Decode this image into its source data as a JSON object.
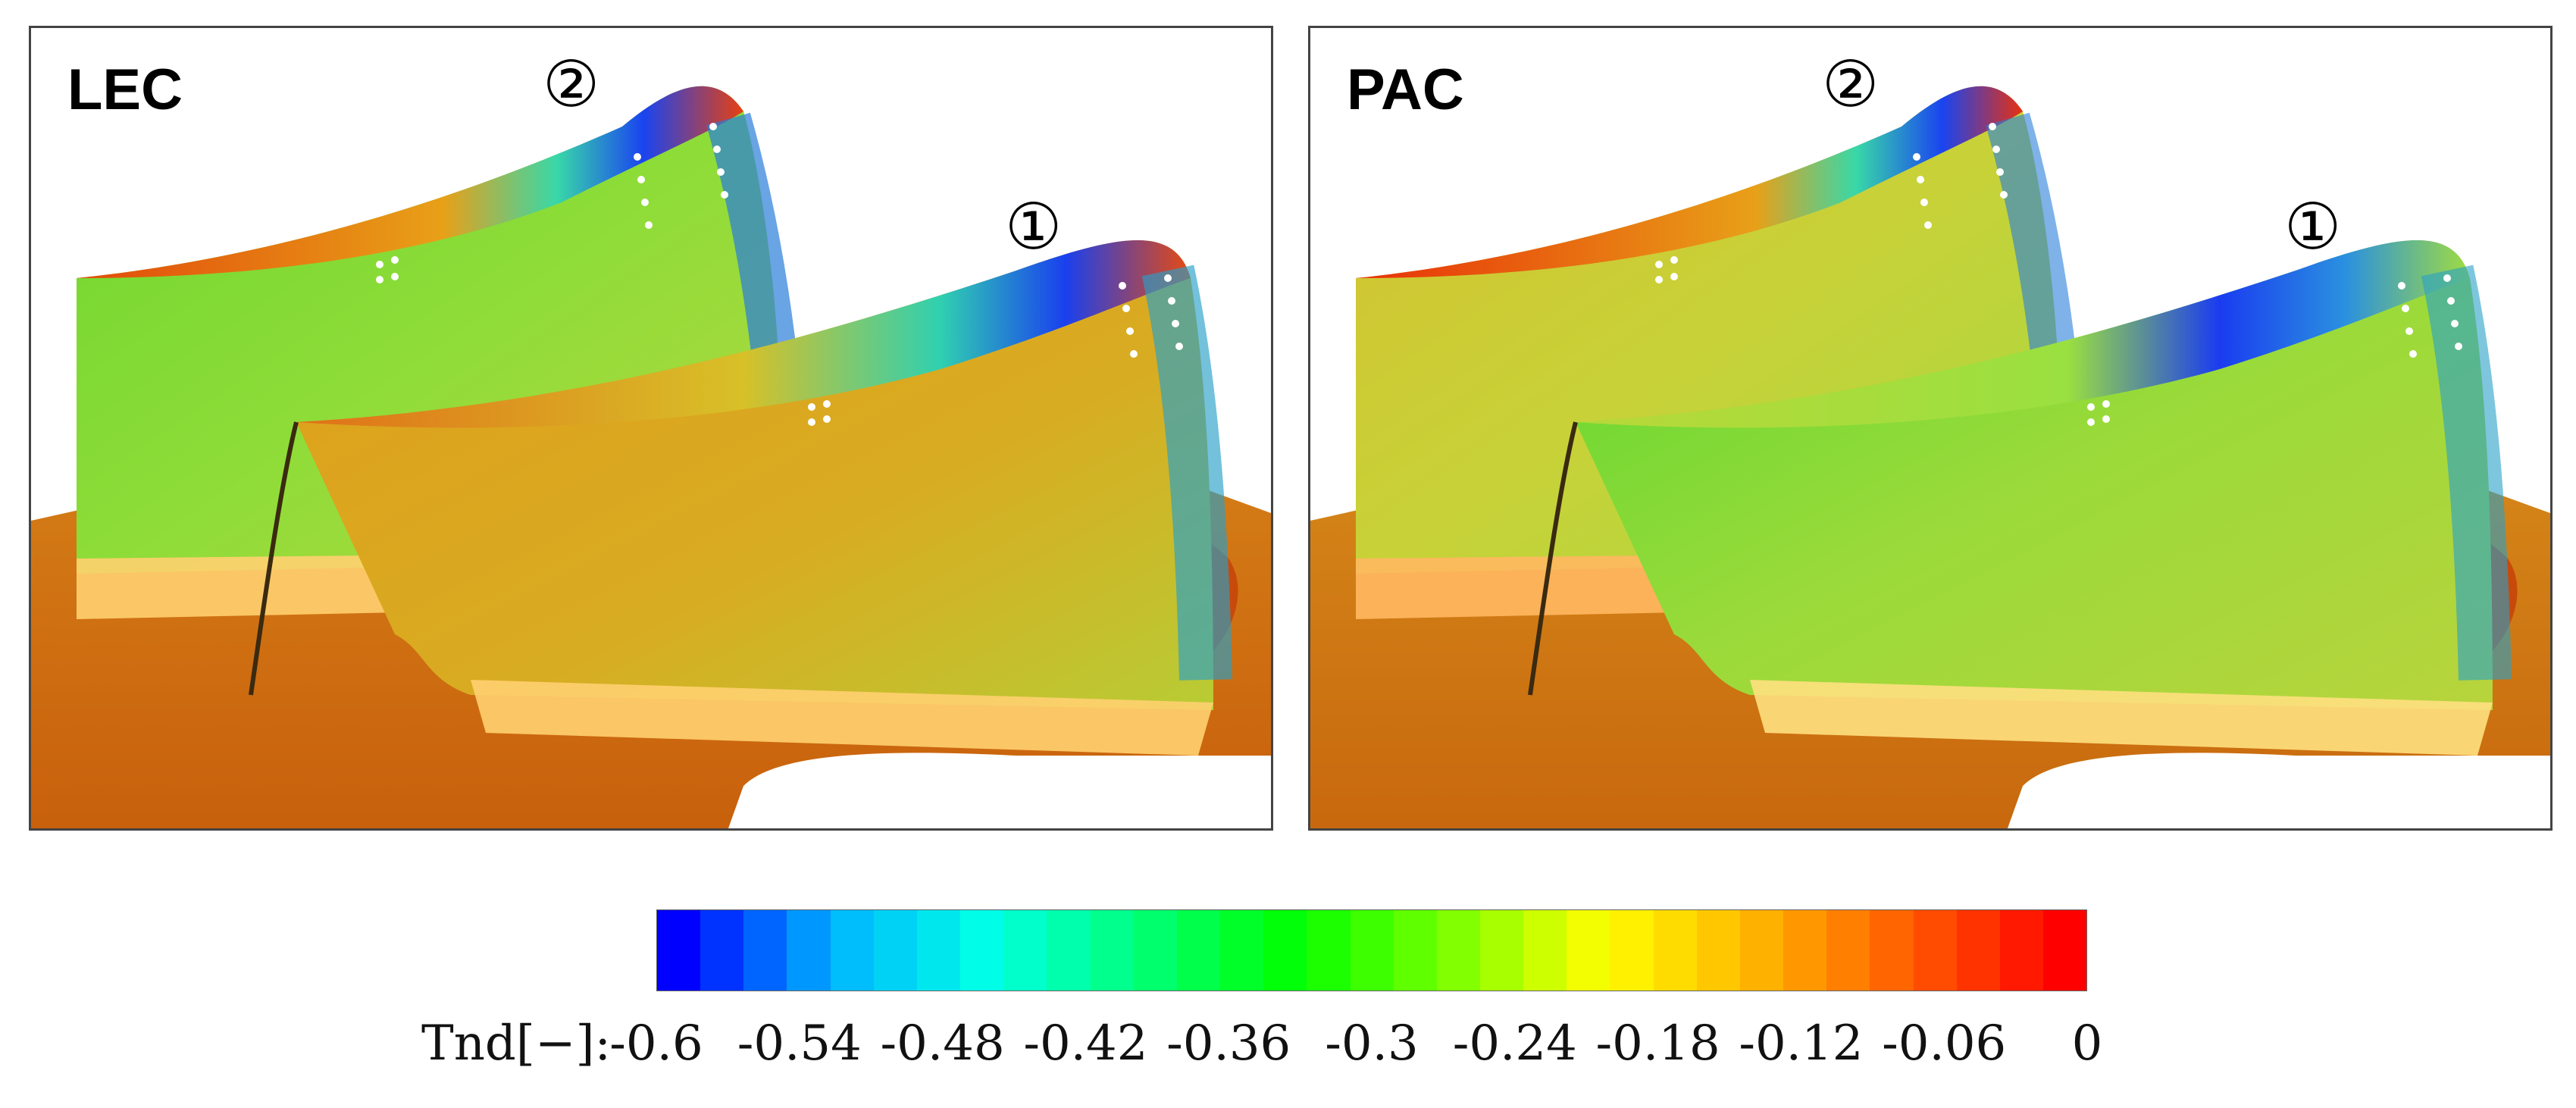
{
  "panels": [
    {
      "id": "lec",
      "label": "LEC",
      "marker_blade_2": "②",
      "marker_blade_1": "①"
    },
    {
      "id": "pac",
      "label": "PAC",
      "marker_blade_2": "②",
      "marker_blade_1": "①"
    }
  ],
  "colorbar": {
    "title": "Tnd[−]:",
    "min": -0.6,
    "max": 0,
    "ticks": [
      "-0.6",
      "-0.54",
      "-0.48",
      "-0.42",
      "-0.36",
      "-0.3",
      "-0.24",
      "-0.18",
      "-0.12",
      "-0.06",
      "0"
    ],
    "levels": 33,
    "stops": [
      "#0000ff",
      "#00b4ff",
      "#00ffe6",
      "#00ff78",
      "#00ff00",
      "#7aff00",
      "#ffff00",
      "#ffb400",
      "#ff5a00",
      "#ff0000"
    ]
  },
  "colors": {
    "hub": "#d47812",
    "hub_dark": "#c8560a",
    "hub_edge": "#c43a08",
    "blade_lec_1": "#dca018",
    "blade_lec_2": "#78d830",
    "blade_pac": "#cad23a",
    "blade_pac_1": "#90de38",
    "tip_red": "#e23a0a",
    "cooling_blue": "#1a3cf0",
    "trailing_blue": "#2a7ed8",
    "fillet_glow": "#ffd880",
    "panel_border": "#444444"
  }
}
